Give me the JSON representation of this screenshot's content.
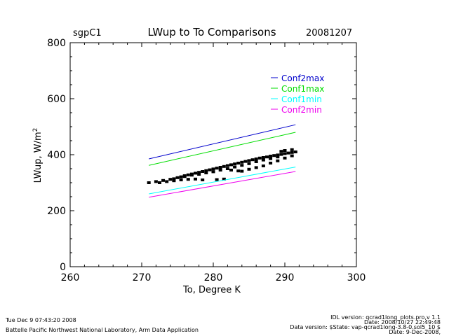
{
  "header": {
    "site": "sgpC1",
    "title": "LWup to To Comparisons",
    "date": "20081207"
  },
  "footer": {
    "timestamp": "Tue Dec  9 07:43:20 2008",
    "org": "Battelle Pacific Northwest National Laboratory, Arm Data Application",
    "idl_version": "IDL version: qcrad1long_plots.pro,v 1.1",
    "idl_date": "Date: 2008/10/27 22:49:48",
    "data_version": "Data version: $State: vap-qcrad1long-3.8-0.sol5_10 $",
    "data_date": "Date: 9-Dec-2008,"
  },
  "chart_data": {
    "type": "line",
    "title": "LWup to To Comparisons",
    "xlabel": "To, Degree K",
    "ylabel": "LWup, W/m^2",
    "xlim": [
      260,
      300
    ],
    "ylim": [
      0,
      800
    ],
    "xticks": [
      260,
      270,
      280,
      290,
      300
    ],
    "yticks": [
      0,
      200,
      400,
      600,
      800
    ],
    "grid": false,
    "legend_position": "top-right",
    "series": [
      {
        "name": "Conf2max",
        "color": "#0000cc",
        "x": [
          271,
          291.5
        ],
        "y": [
          385,
          507
        ]
      },
      {
        "name": "Conf1max",
        "color": "#00dd00",
        "x": [
          271,
          291.5
        ],
        "y": [
          362,
          480
        ]
      },
      {
        "name": "Conf1min",
        "color": "#00ffff",
        "x": [
          271,
          291.5
        ],
        "y": [
          260,
          356
        ]
      },
      {
        "name": "Conf2min",
        "color": "#ee00ee",
        "x": [
          271,
          291.5
        ],
        "y": [
          248,
          340
        ]
      }
    ],
    "observations": {
      "color": "#000000",
      "x": [
        271,
        272,
        273,
        274,
        274.5,
        275,
        275.5,
        276,
        276.5,
        277,
        277.5,
        278,
        278.5,
        279,
        279.5,
        280,
        280.5,
        281,
        281.5,
        282,
        282.5,
        283,
        283.5,
        284,
        284.5,
        285,
        285.5,
        286,
        286.5,
        287,
        287.5,
        288,
        288.5,
        289,
        289.5,
        290,
        290.5,
        291,
        291.5,
        272.5,
        273.5,
        274.5,
        275.5,
        276.5,
        277.5,
        278.5,
        280.5,
        281.5,
        282.5,
        283.5,
        284,
        285,
        286,
        287,
        288,
        289,
        290,
        291,
        276,
        277,
        278,
        279,
        280,
        281,
        282,
        283,
        284,
        285,
        286,
        287,
        288,
        289,
        289.5,
        290,
        291
      ],
      "y": [
        300,
        304,
        308,
        312,
        314,
        318,
        321,
        325,
        328,
        331,
        334,
        337,
        340,
        343,
        346,
        349,
        352,
        355,
        358,
        361,
        364,
        367,
        370,
        373,
        376,
        379,
        382,
        385,
        388,
        390,
        392,
        395,
        397,
        399,
        401,
        404,
        406,
        408,
        410,
        300,
        304,
        307,
        310,
        312,
        313,
        310,
        311,
        313,
        345,
        342,
        341,
        348,
        354,
        360,
        370,
        378,
        388,
        396,
        322,
        327,
        330,
        335,
        339,
        345,
        350,
        356,
        362,
        368,
        375,
        381,
        386,
        392,
        412,
        415,
        418
      ]
    }
  }
}
